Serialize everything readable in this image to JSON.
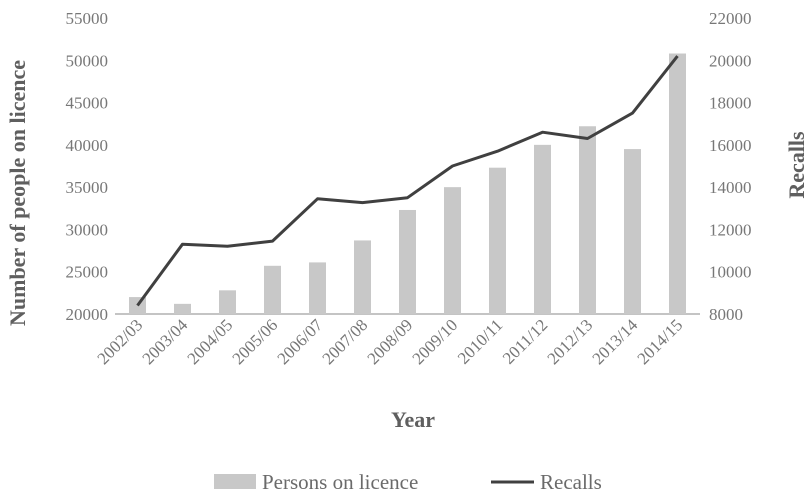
{
  "chart_data": {
    "type": "bar",
    "xlabel": "Year",
    "ylabel": "Number of people on licence",
    "y2label": "Recalls",
    "categories": [
      "2002/03",
      "2003/04",
      "2004/05",
      "2005/06",
      "2006/07",
      "2007/08",
      "2008/09",
      "2009/10",
      "2010/11",
      "2011/12",
      "2012/13",
      "2013/14",
      "2014/15"
    ],
    "ylim": [
      20000,
      55000
    ],
    "y2lim": [
      8000,
      22000
    ],
    "yticks": [
      "20000",
      "25000",
      "30000",
      "35000",
      "40000",
      "45000",
      "50000",
      "55000"
    ],
    "y2ticks": [
      "8000",
      "10000",
      "12000",
      "14000",
      "16000",
      "18000",
      "20000",
      "22000"
    ],
    "grid": false,
    "legend_position": "bottom",
    "series": [
      {
        "name": "Persons on licence",
        "type": "bar",
        "axis": "left",
        "color": "#c8c8c8",
        "values": [
          22000,
          21200,
          22800,
          25700,
          26100,
          28700,
          32300,
          35000,
          37300,
          40000,
          42200,
          39500,
          50800
        ]
      },
      {
        "name": "Recalls",
        "type": "line",
        "axis": "right",
        "color": "#404040",
        "values": [
          8400,
          11300,
          11200,
          11450,
          13450,
          13270,
          13500,
          15000,
          15700,
          16600,
          16300,
          17500,
          20200
        ]
      }
    ]
  }
}
